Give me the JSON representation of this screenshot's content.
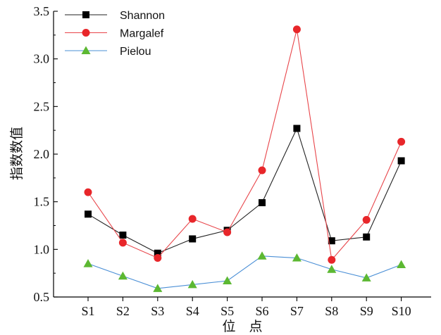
{
  "chart_data": {
    "type": "line",
    "title": "",
    "xlabel": "位　点",
    "ylabel": "指数数值",
    "categories": [
      "S1",
      "S2",
      "S3",
      "S4",
      "S5",
      "S6",
      "S7",
      "S8",
      "S9",
      "S10"
    ],
    "ylim": [
      0.5,
      3.5
    ],
    "yticks": [
      "0.5",
      "1.0",
      "1.5",
      "2.0",
      "2.5",
      "3.0",
      "3.5"
    ],
    "grid": false,
    "legend_position": "top-left",
    "series": [
      {
        "name": "Shannon",
        "color": "#222222",
        "marker": "square",
        "marker_color": "#000000",
        "values": [
          1.37,
          1.15,
          0.96,
          1.11,
          1.2,
          1.49,
          2.27,
          1.09,
          1.13,
          1.93
        ]
      },
      {
        "name": "Margalef",
        "color": "#e8454a",
        "marker": "circle",
        "marker_color": "#e8262a",
        "values": [
          1.6,
          1.07,
          0.91,
          1.32,
          1.18,
          1.83,
          3.31,
          0.89,
          1.31,
          2.13
        ]
      },
      {
        "name": "Pielou",
        "color": "#4a8fd6",
        "marker": "triangle",
        "marker_color": "#5cb832",
        "values": [
          0.85,
          0.72,
          0.59,
          0.63,
          0.67,
          0.93,
          0.91,
          0.79,
          0.7,
          0.84
        ]
      }
    ]
  }
}
